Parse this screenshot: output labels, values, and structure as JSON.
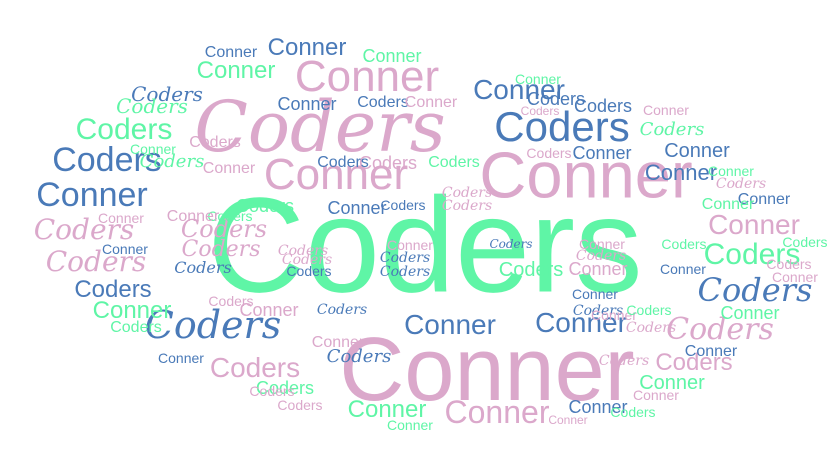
{
  "word_cloud": {
    "words": [
      "Coders",
      "Conner"
    ],
    "colors": {
      "green": "#5ff5a6",
      "pink": "#dba8cb",
      "blue": "#4a7ab8"
    }
  }
}
